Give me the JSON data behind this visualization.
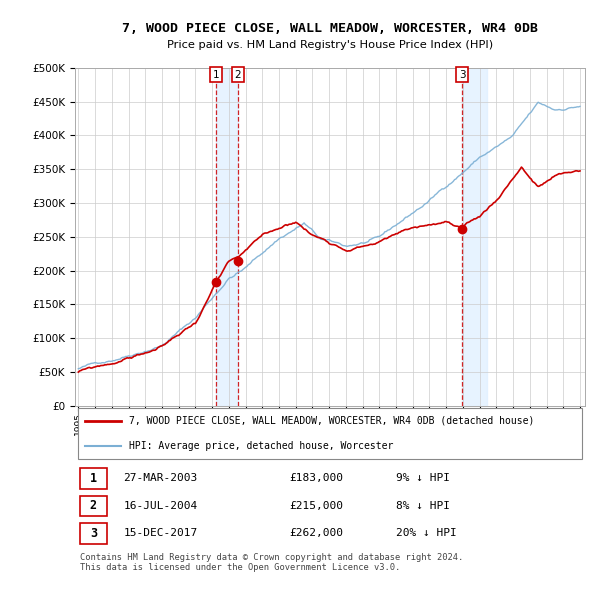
{
  "title": "7, WOOD PIECE CLOSE, WALL MEADOW, WORCESTER, WR4 0DB",
  "subtitle": "Price paid vs. HM Land Registry's House Price Index (HPI)",
  "ylabel_ticks": [
    "£0",
    "£50K",
    "£100K",
    "£150K",
    "£200K",
    "£250K",
    "£300K",
    "£350K",
    "£400K",
    "£450K",
    "£500K"
  ],
  "ytick_values": [
    0,
    50000,
    100000,
    150000,
    200000,
    250000,
    300000,
    350000,
    400000,
    450000,
    500000
  ],
  "ylim": [
    0,
    500000
  ],
  "xlim_start": 1994.8,
  "xlim_end": 2025.3,
  "transactions": [
    {
      "label": "1",
      "date": "27-MAR-2003",
      "price": 183000,
      "pct": "9%",
      "direction": "↓",
      "year": 2003.23
    },
    {
      "label": "2",
      "date": "16-JUL-2004",
      "price": 215000,
      "pct": "8%",
      "direction": "↓",
      "year": 2004.54
    },
    {
      "label": "3",
      "date": "15-DEC-2017",
      "price": 262000,
      "pct": "20%",
      "direction": "↓",
      "year": 2017.96
    }
  ],
  "legend_red": "7, WOOD PIECE CLOSE, WALL MEADOW, WORCESTER, WR4 0DB (detached house)",
  "legend_blue": "HPI: Average price, detached house, Worcester",
  "footer": "Contains HM Land Registry data © Crown copyright and database right 2024.\nThis data is licensed under the Open Government Licence v3.0.",
  "red_color": "#cc0000",
  "blue_color": "#7bafd4",
  "shade_color": "#ddeeff",
  "dashed_color": "#cc0000",
  "bg_color": "#ffffff",
  "grid_color": "#cccccc",
  "table_rows": [
    [
      "1",
      "27-MAR-2003",
      "£183,000",
      "9% ↓ HPI"
    ],
    [
      "2",
      "16-JUL-2004",
      "£215,000",
      "8% ↓ HPI"
    ],
    [
      "3",
      "15-DEC-2017",
      "£262,000",
      "20% ↓ HPI"
    ]
  ]
}
